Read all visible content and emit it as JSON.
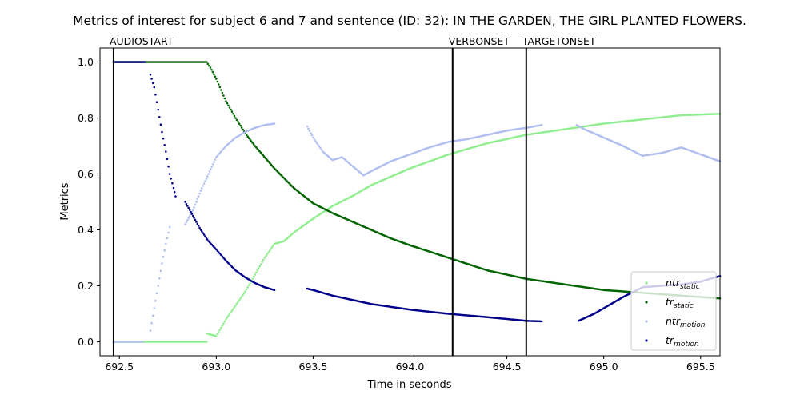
{
  "chart_data": {
    "type": "scatter",
    "title": "Metrics of interest for subject 6 and 7 and sentence (ID: 32): IN THE GARDEN, THE GIRL PLANTED FLOWERS.",
    "xlabel": "Time in seconds",
    "ylabel": "Metrics",
    "xlim": [
      692.4,
      695.6
    ],
    "ylim": [
      -0.05,
      1.05
    ],
    "x_ticks": [
      692.5,
      693.0,
      693.5,
      694.0,
      694.5,
      695.0,
      695.5
    ],
    "x_tick_labels": [
      "692.5",
      "693.0",
      "693.5",
      "694.0",
      "694.5",
      "695.0",
      "695.5"
    ],
    "y_ticks": [
      0.0,
      0.2,
      0.4,
      0.6,
      0.8,
      1.0
    ],
    "y_tick_labels": [
      "0.0",
      "0.2",
      "0.4",
      "0.6",
      "0.8",
      "1.0"
    ],
    "grid": false,
    "legend_position": "lower-right",
    "events": [
      {
        "label": "AUDIOSTART",
        "x": 692.47
      },
      {
        "label": "VERBONSET",
        "x": 694.22
      },
      {
        "label": "TARGETONSET",
        "x": 694.6
      }
    ],
    "series": [
      {
        "name": "ntr_static",
        "legend_main": "ntr",
        "legend_sub": "static",
        "color": "#90ee90",
        "segments": [
          [
            [
              692.47,
              0.0
            ],
            [
              692.95,
              0.0
            ]
          ],
          [
            [
              692.95,
              0.03
            ],
            [
              693.0,
              0.02
            ],
            [
              693.05,
              0.08
            ],
            [
              693.1,
              0.13
            ],
            [
              693.15,
              0.18
            ],
            [
              693.2,
              0.24
            ],
            [
              693.25,
              0.3
            ],
            [
              693.3,
              0.35
            ],
            [
              693.35,
              0.36
            ],
            [
              693.4,
              0.39
            ],
            [
              693.5,
              0.44
            ],
            [
              693.6,
              0.485
            ],
            [
              693.7,
              0.52
            ],
            [
              693.8,
              0.56
            ],
            [
              693.9,
              0.59
            ],
            [
              694.0,
              0.62
            ],
            [
              694.2,
              0.67
            ],
            [
              694.4,
              0.71
            ],
            [
              694.6,
              0.74
            ],
            [
              694.8,
              0.76
            ],
            [
              695.0,
              0.78
            ],
            [
              695.2,
              0.795
            ],
            [
              695.4,
              0.81
            ],
            [
              695.6,
              0.815
            ]
          ]
        ]
      },
      {
        "name": "tr_static",
        "legend_main": "tr",
        "legend_sub": "static",
        "color": "#006400",
        "segments": [
          [
            [
              692.47,
              1.0
            ],
            [
              692.95,
              1.0
            ],
            [
              692.97,
              0.98
            ],
            [
              693.0,
              0.94
            ],
            [
              693.05,
              0.86
            ],
            [
              693.1,
              0.8
            ],
            [
              693.15,
              0.745
            ],
            [
              693.2,
              0.7
            ],
            [
              693.3,
              0.62
            ],
            [
              693.4,
              0.55
            ],
            [
              693.5,
              0.495
            ],
            [
              693.6,
              0.46
            ],
            [
              693.7,
              0.43
            ],
            [
              693.8,
              0.4
            ],
            [
              693.9,
              0.37
            ],
            [
              694.0,
              0.345
            ],
            [
              694.2,
              0.3
            ],
            [
              694.4,
              0.255
            ],
            [
              694.6,
              0.225
            ],
            [
              694.8,
              0.205
            ],
            [
              695.0,
              0.185
            ],
            [
              695.2,
              0.175
            ],
            [
              695.4,
              0.165
            ],
            [
              695.6,
              0.155
            ]
          ]
        ]
      },
      {
        "name": "ntr_motion",
        "legend_main": "ntr",
        "legend_sub": "motion",
        "color": "#b0bff0",
        "segments": [
          [
            [
              692.47,
              0.0
            ],
            [
              692.62,
              0.0
            ]
          ],
          [
            [
              692.66,
              0.04
            ],
            [
              692.68,
              0.12
            ],
            [
              692.7,
              0.2
            ],
            [
              692.72,
              0.28
            ],
            [
              692.74,
              0.35
            ],
            [
              692.76,
              0.41
            ]
          ],
          [
            [
              692.84,
              0.42
            ],
            [
              692.88,
              0.47
            ],
            [
              692.92,
              0.54
            ],
            [
              692.96,
              0.6
            ],
            [
              693.0,
              0.66
            ],
            [
              693.05,
              0.7
            ],
            [
              693.1,
              0.73
            ],
            [
              693.15,
              0.75
            ],
            [
              693.2,
              0.765
            ],
            [
              693.25,
              0.775
            ],
            [
              693.3,
              0.78
            ]
          ],
          [
            [
              693.47,
              0.77
            ],
            [
              693.5,
              0.73
            ],
            [
              693.55,
              0.68
            ],
            [
              693.6,
              0.65
            ],
            [
              693.65,
              0.66
            ],
            [
              693.7,
              0.63
            ],
            [
              693.76,
              0.595
            ],
            [
              693.8,
              0.61
            ],
            [
              693.9,
              0.645
            ],
            [
              694.0,
              0.67
            ],
            [
              694.1,
              0.695
            ],
            [
              694.2,
              0.715
            ],
            [
              694.3,
              0.725
            ],
            [
              694.4,
              0.74
            ],
            [
              694.5,
              0.755
            ],
            [
              694.6,
              0.765
            ],
            [
              694.68,
              0.775
            ]
          ],
          [
            [
              694.86,
              0.775
            ],
            [
              694.9,
              0.76
            ],
            [
              695.0,
              0.73
            ],
            [
              695.1,
              0.7
            ],
            [
              695.2,
              0.665
            ],
            [
              695.3,
              0.675
            ],
            [
              695.4,
              0.695
            ],
            [
              695.5,
              0.67
            ],
            [
              695.6,
              0.645
            ]
          ]
        ]
      },
      {
        "name": "tr_motion",
        "legend_main": "tr",
        "legend_sub": "motion",
        "color": "#00008b",
        "segments": [
          [
            [
              692.47,
              1.0
            ],
            [
              692.63,
              1.0
            ]
          ],
          [
            [
              692.66,
              0.955
            ],
            [
              692.68,
              0.91
            ],
            [
              692.7,
              0.83
            ],
            [
              692.72,
              0.75
            ],
            [
              692.74,
              0.68
            ],
            [
              692.76,
              0.6
            ],
            [
              692.78,
              0.55
            ],
            [
              692.79,
              0.52
            ]
          ],
          [
            [
              692.84,
              0.5
            ],
            [
              692.88,
              0.45
            ],
            [
              692.92,
              0.4
            ],
            [
              692.96,
              0.36
            ],
            [
              693.0,
              0.33
            ],
            [
              693.05,
              0.29
            ],
            [
              693.1,
              0.255
            ],
            [
              693.15,
              0.23
            ],
            [
              693.2,
              0.21
            ],
            [
              693.25,
              0.195
            ],
            [
              693.3,
              0.185
            ]
          ],
          [
            [
              693.47,
              0.19
            ],
            [
              693.5,
              0.185
            ],
            [
              693.6,
              0.165
            ],
            [
              693.7,
              0.15
            ],
            [
              693.8,
              0.135
            ],
            [
              693.9,
              0.125
            ],
            [
              694.0,
              0.115
            ],
            [
              694.2,
              0.1
            ],
            [
              694.4,
              0.088
            ],
            [
              694.6,
              0.075
            ],
            [
              694.68,
              0.073
            ]
          ],
          [
            [
              694.87,
              0.075
            ],
            [
              694.95,
              0.1
            ],
            [
              695.0,
              0.12
            ],
            [
              695.1,
              0.16
            ],
            [
              695.2,
              0.195
            ],
            [
              695.3,
              0.2
            ],
            [
              695.4,
              0.205
            ],
            [
              695.5,
              0.215
            ],
            [
              695.6,
              0.235
            ]
          ]
        ]
      }
    ]
  }
}
